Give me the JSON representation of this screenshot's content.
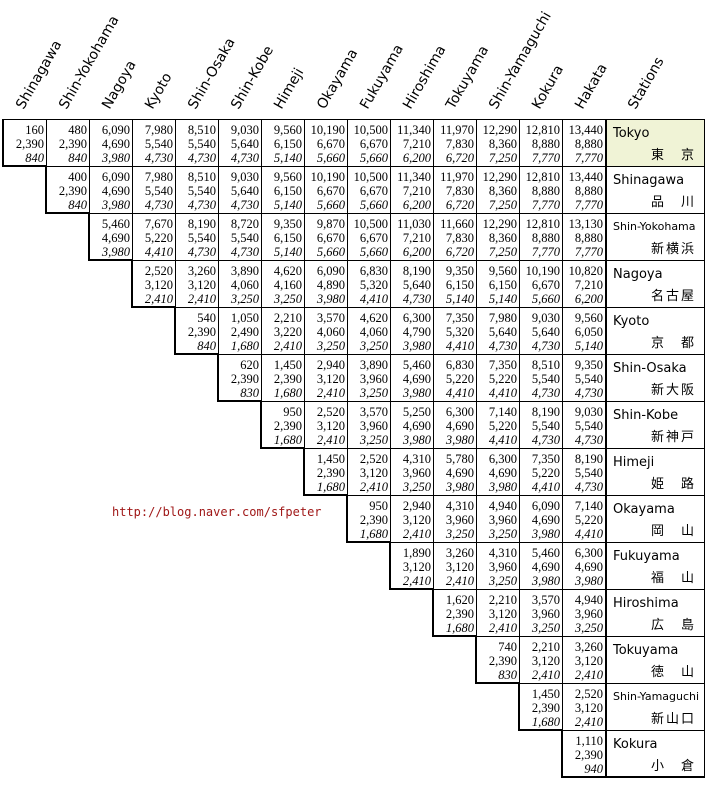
{
  "columns": [
    "Shinagawa",
    "Shin-Yokohama",
    "Nagoya",
    "Kyoto",
    "Shin-Osaka",
    "Shin-Kobe",
    "Himeji",
    "Okayama",
    "Fukuyama",
    "Hiroshima",
    "Tokuyama",
    "Shin-Yamaguchi",
    "Kokura",
    "Hakata"
  ],
  "stations_header": "Stations",
  "watermark": "http://blog.naver.com/sfpeter",
  "rows": [
    {
      "en": "Tokyo",
      "jp": "東　京",
      "highlight": true,
      "cells": [
        [
          "160",
          "2,390",
          "840"
        ],
        [
          "480",
          "2,390",
          "840"
        ],
        [
          "6,090",
          "4,690",
          "3,980"
        ],
        [
          "7,980",
          "5,540",
          "4,730"
        ],
        [
          "8,510",
          "5,540",
          "4,730"
        ],
        [
          "9,030",
          "5,640",
          "4,730"
        ],
        [
          "9,560",
          "6,150",
          "5,140"
        ],
        [
          "10,190",
          "6,670",
          "5,660"
        ],
        [
          "10,500",
          "6,670",
          "5,660"
        ],
        [
          "11,340",
          "7,210",
          "6,200"
        ],
        [
          "11,970",
          "7,830",
          "6,720"
        ],
        [
          "12,290",
          "8,360",
          "7,250"
        ],
        [
          "12,810",
          "8,880",
          "7,770"
        ],
        [
          "13,440",
          "8,880",
          "7,770"
        ]
      ]
    },
    {
      "en": "Shinagawa",
      "jp": "品　川",
      "cells": [
        [
          "400",
          "2,390",
          "840"
        ],
        [
          "6,090",
          "4,690",
          "3,980"
        ],
        [
          "7,980",
          "5,540",
          "4,730"
        ],
        [
          "8,510",
          "5,540",
          "4,730"
        ],
        [
          "9,030",
          "5,640",
          "4,730"
        ],
        [
          "9,560",
          "6,150",
          "5,140"
        ],
        [
          "10,190",
          "6,670",
          "5,660"
        ],
        [
          "10,500",
          "6,670",
          "5,660"
        ],
        [
          "11,340",
          "7,210",
          "6,200"
        ],
        [
          "11,970",
          "7,830",
          "6,720"
        ],
        [
          "12,290",
          "8,360",
          "7,250"
        ],
        [
          "12,810",
          "8,880",
          "7,770"
        ],
        [
          "13,440",
          "8,880",
          "7,770"
        ]
      ]
    },
    {
      "en": "Shin-Yokohama",
      "jp": "新横浜",
      "cells": [
        [
          "5,460",
          "4,690",
          "3,980"
        ],
        [
          "7,670",
          "5,220",
          "4,410"
        ],
        [
          "8,190",
          "5,540",
          "4,730"
        ],
        [
          "8,720",
          "5,540",
          "4,730"
        ],
        [
          "9,350",
          "6,150",
          "5,140"
        ],
        [
          "9,870",
          "6,670",
          "5,660"
        ],
        [
          "10,500",
          "6,670",
          "5,660"
        ],
        [
          "11,030",
          "7,210",
          "6,200"
        ],
        [
          "11,660",
          "7,830",
          "6,720"
        ],
        [
          "12,290",
          "8,360",
          "7,250"
        ],
        [
          "12,810",
          "8,880",
          "7,770"
        ],
        [
          "13,130",
          "8,880",
          "7,770"
        ]
      ]
    },
    {
      "en": "Nagoya",
      "jp": "名古屋",
      "cells": [
        [
          "2,520",
          "3,120",
          "2,410"
        ],
        [
          "3,260",
          "3,120",
          "2,410"
        ],
        [
          "3,890",
          "4,060",
          "3,250"
        ],
        [
          "4,620",
          "4,160",
          "3,250"
        ],
        [
          "6,090",
          "4,890",
          "3,980"
        ],
        [
          "6,830",
          "5,320",
          "4,410"
        ],
        [
          "8,190",
          "5,640",
          "4,730"
        ],
        [
          "9,350",
          "6,150",
          "5,140"
        ],
        [
          "9,560",
          "6,150",
          "5,140"
        ],
        [
          "10,190",
          "6,670",
          "5,660"
        ],
        [
          "10,820",
          "7,210",
          "6,200"
        ]
      ]
    },
    {
      "en": "Kyoto",
      "jp": "京　都",
      "cells": [
        [
          "540",
          "2,390",
          "840"
        ],
        [
          "1,050",
          "2,490",
          "1,680"
        ],
        [
          "2,210",
          "3,220",
          "2,410"
        ],
        [
          "3,570",
          "4,060",
          "3,250"
        ],
        [
          "4,620",
          "4,060",
          "3,250"
        ],
        [
          "6,300",
          "4,790",
          "3,980"
        ],
        [
          "7,350",
          "5,320",
          "4,410"
        ],
        [
          "7,980",
          "5,640",
          "4,730"
        ],
        [
          "9,030",
          "5,640",
          "4,730"
        ],
        [
          "9,560",
          "6,050",
          "5,140"
        ]
      ]
    },
    {
      "en": "Shin-Osaka",
      "jp": "新大阪",
      "cells": [
        [
          "620",
          "2,390",
          "830"
        ],
        [
          "1,450",
          "2,390",
          "1,680"
        ],
        [
          "2,940",
          "3,120",
          "2,410"
        ],
        [
          "3,890",
          "3,960",
          "3,250"
        ],
        [
          "5,460",
          "4,690",
          "3,980"
        ],
        [
          "6,830",
          "5,220",
          "4,410"
        ],
        [
          "7,350",
          "5,220",
          "4,410"
        ],
        [
          "8,510",
          "5,540",
          "4,730"
        ],
        [
          "9,350",
          "5,540",
          "4,730"
        ]
      ]
    },
    {
      "en": "Shin-Kobe",
      "jp": "新神戸",
      "cells": [
        [
          "950",
          "2,390",
          "1,680"
        ],
        [
          "2,520",
          "3,120",
          "2,410"
        ],
        [
          "3,570",
          "3,960",
          "3,250"
        ],
        [
          "5,250",
          "4,690",
          "3,980"
        ],
        [
          "6,300",
          "4,690",
          "3,980"
        ],
        [
          "7,140",
          "5,220",
          "4,410"
        ],
        [
          "8,190",
          "5,540",
          "4,730"
        ],
        [
          "9,030",
          "5,540",
          "4,730"
        ]
      ]
    },
    {
      "en": "Himeji",
      "jp": "姫　路",
      "cells": [
        [
          "1,450",
          "2,390",
          "1,680"
        ],
        [
          "2,520",
          "3,120",
          "2,410"
        ],
        [
          "4,310",
          "3,960",
          "3,250"
        ],
        [
          "5,780",
          "4,690",
          "3,980"
        ],
        [
          "6,300",
          "4,690",
          "3,980"
        ],
        [
          "7,350",
          "5,220",
          "4,410"
        ],
        [
          "8,190",
          "5,540",
          "4,730"
        ]
      ]
    },
    {
      "en": "Okayama",
      "jp": "岡　山",
      "cells": [
        [
          "950",
          "2,390",
          "1,680"
        ],
        [
          "2,940",
          "3,120",
          "2,410"
        ],
        [
          "4,310",
          "3,960",
          "3,250"
        ],
        [
          "4,940",
          "3,960",
          "3,250"
        ],
        [
          "6,090",
          "4,690",
          "3,980"
        ],
        [
          "7,140",
          "5,220",
          "4,410"
        ]
      ]
    },
    {
      "en": "Fukuyama",
      "jp": "福　山",
      "cells": [
        [
          "1,890",
          "3,120",
          "2,410"
        ],
        [
          "3,260",
          "3,120",
          "2,410"
        ],
        [
          "4,310",
          "3,960",
          "3,250"
        ],
        [
          "5,460",
          "4,690",
          "3,980"
        ],
        [
          "6,300",
          "4,690",
          "3,980"
        ]
      ]
    },
    {
      "en": "Hiroshima",
      "jp": "広　島",
      "cells": [
        [
          "1,620",
          "2,390",
          "1,680"
        ],
        [
          "2,210",
          "3,120",
          "2,410"
        ],
        [
          "3,570",
          "3,960",
          "3,250"
        ],
        [
          "4,940",
          "3,960",
          "3,250"
        ]
      ]
    },
    {
      "en": "Tokuyama",
      "jp": "徳　山",
      "cells": [
        [
          "740",
          "2,390",
          "830"
        ],
        [
          "2,210",
          "3,120",
          "2,410"
        ],
        [
          "3,260",
          "3,120",
          "2,410"
        ]
      ]
    },
    {
      "en": "Shin-Yamaguchi",
      "jp": "新山口",
      "cells": [
        [
          "1,450",
          "2,390",
          "1,680"
        ],
        [
          "2,520",
          "3,120",
          "2,410"
        ]
      ]
    },
    {
      "en": "Kokura",
      "jp": "小　倉",
      "cells": [
        [
          "1,110",
          "2,390",
          "940"
        ]
      ]
    }
  ]
}
